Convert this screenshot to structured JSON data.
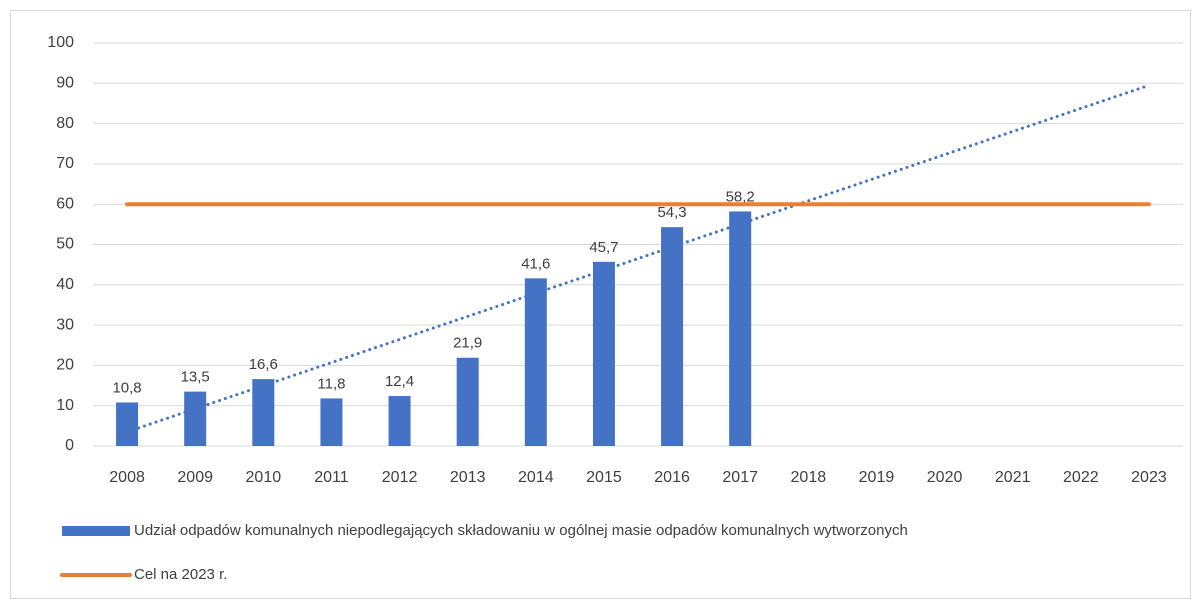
{
  "chart_data": {
    "type": "bar",
    "categories": [
      "2008",
      "2009",
      "2010",
      "2011",
      "2012",
      "2013",
      "2014",
      "2015",
      "2016",
      "2017",
      "2018",
      "2019",
      "2020",
      "2021",
      "2022",
      "2023"
    ],
    "series": [
      {
        "name": "Udział odpadów komunalnych niepodlegających składowaniu w ogólnej masie odpadów komunalnych wytworzonych",
        "type": "bar",
        "color": "#4472c4",
        "values": [
          10.8,
          13.5,
          16.6,
          11.8,
          12.4,
          21.9,
          41.6,
          45.7,
          54.3,
          58.2,
          null,
          null,
          null,
          null,
          null,
          null
        ],
        "value_labels": [
          "10,8",
          "13,5",
          "16,6",
          "11,8",
          "12,4",
          "21,9",
          "41,6",
          "45,7",
          "54,3",
          "58,2",
          null,
          null,
          null,
          null,
          null,
          null
        ]
      },
      {
        "name": "Cel na 2023 r.",
        "type": "line",
        "color": "#ed7d31",
        "values": [
          60,
          60,
          60,
          60,
          60,
          60,
          60,
          60,
          60,
          60,
          60,
          60,
          60,
          60,
          60,
          60
        ]
      }
    ],
    "trendline": {
      "x": [
        "2008",
        "2023"
      ],
      "values": [
        3.5,
        89.5
      ],
      "color": "#4472c4",
      "style": "dotted"
    },
    "ylim": [
      0,
      100
    ],
    "yticks": [
      0,
      10,
      20,
      30,
      40,
      50,
      60,
      70,
      80,
      90,
      100
    ],
    "grid": true
  }
}
